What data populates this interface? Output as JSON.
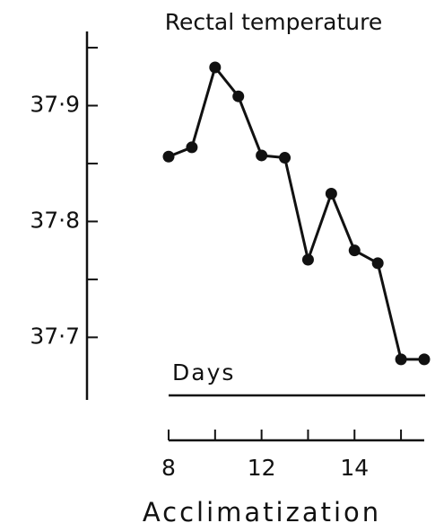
{
  "chart_data": {
    "type": "line",
    "title": "Rectal temperature",
    "annotation": "Days",
    "xlabel": "Acclimatization",
    "x": [
      0,
      0.5,
      1,
      1.5,
      2,
      2.5,
      3,
      3.5,
      4,
      4.5,
      5,
      5.5
    ],
    "values": [
      37.856,
      37.864,
      37.933,
      37.908,
      37.857,
      37.855,
      37.767,
      37.824,
      37.775,
      37.764,
      37.681,
      37.681
    ],
    "color": "#111111",
    "xlim": [
      0,
      5.5
    ],
    "xticks": [
      {
        "value": 0,
        "label": "8"
      },
      {
        "value": 2,
        "label": "12"
      },
      {
        "value": 4,
        "label": "14"
      }
    ],
    "xminor_ticks": [
      1,
      3,
      5
    ],
    "ylim": [
      37.646,
      37.964
    ],
    "yticks": [
      {
        "value": 37.9,
        "label": "37·9"
      },
      {
        "value": 37.8,
        "label": "37·8"
      },
      {
        "value": 37.7,
        "label": "37·7"
      }
    ],
    "yminor_ticks": [
      37.95,
      37.85,
      37.75
    ],
    "grid": false
  }
}
